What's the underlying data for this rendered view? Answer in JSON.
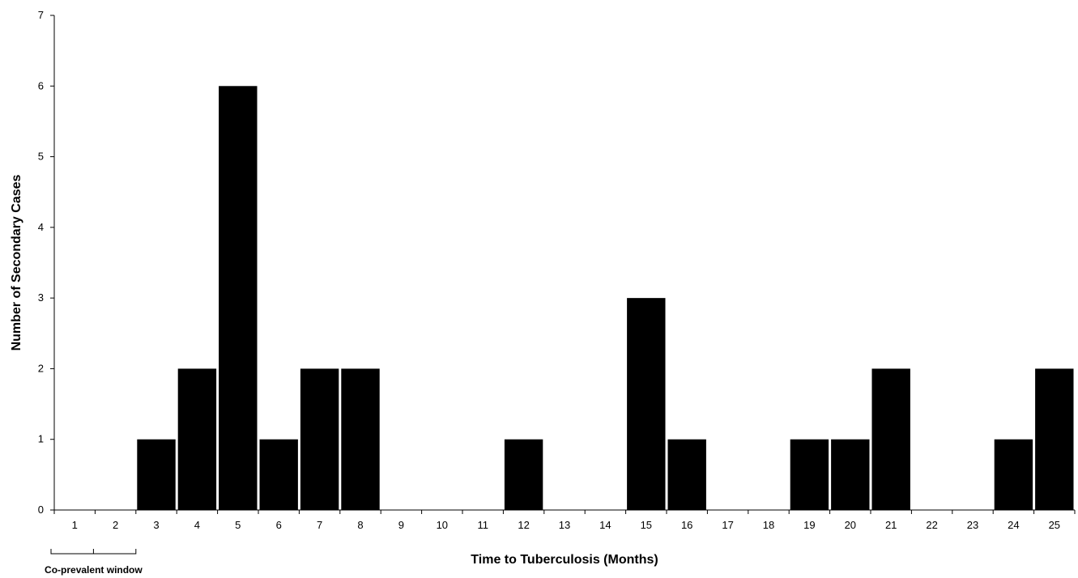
{
  "chart_data": {
    "type": "bar",
    "categories": [
      "1",
      "2",
      "3",
      "4",
      "5",
      "6",
      "7",
      "8",
      "9",
      "10",
      "11",
      "12",
      "13",
      "14",
      "15",
      "16",
      "17",
      "18",
      "19",
      "20",
      "21",
      "22",
      "23",
      "24",
      "25"
    ],
    "values": [
      0,
      0,
      1,
      2,
      6,
      1,
      2,
      2,
      0,
      0,
      0,
      1,
      0,
      0,
      3,
      1,
      0,
      0,
      1,
      1,
      2,
      0,
      0,
      1,
      2
    ],
    "title": "",
    "xlabel": "Time to Tuberculosis (Months)",
    "ylabel": "Number of Secondary Cases",
    "ylim": [
      0,
      7
    ],
    "yticks": [
      0,
      1,
      2,
      3,
      4,
      5,
      6,
      7
    ],
    "grid": false,
    "bar_color": "#000000",
    "annotations": [
      {
        "text": "Co-prevalent window",
        "span_categories": [
          "1",
          "2",
          "3"
        ]
      }
    ]
  }
}
